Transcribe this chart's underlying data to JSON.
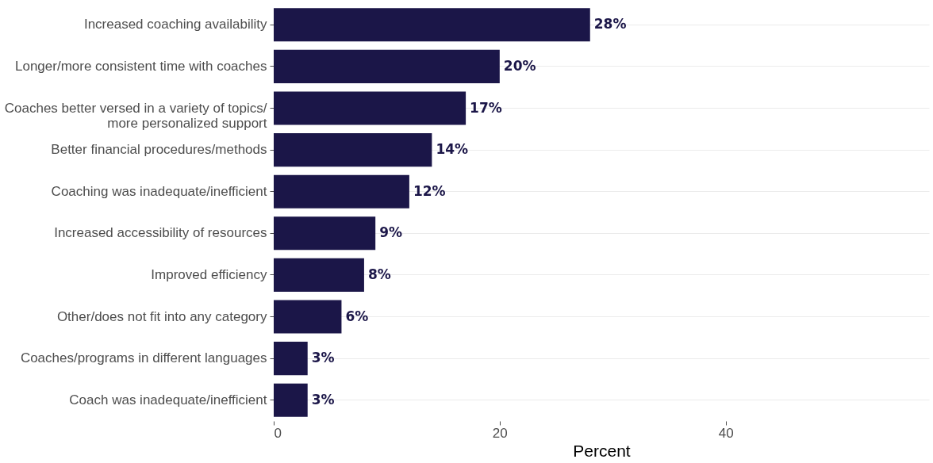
{
  "chart_data": {
    "type": "bar",
    "orientation": "horizontal",
    "xlabel": "Percent",
    "categories": [
      "Increased coaching availability",
      "Longer/more consistent time with coaches",
      "Coaches better versed in a variety of topics/\nmore personalized support",
      "Better financial procedures/methods",
      "Coaching was inadequate/inefficient",
      "Increased accessibility of resources",
      "Improved efficiency",
      "Other/does not fit into any category",
      "Coaches/programs in different languages",
      "Coach was inadequate/inefficient"
    ],
    "values": [
      28,
      20,
      17,
      14,
      12,
      9,
      8,
      6,
      3,
      3
    ],
    "value_labels": [
      "28%",
      "20%",
      "17%",
      "14%",
      "12%",
      "9%",
      "8%",
      "6%",
      "3%",
      "3%"
    ],
    "color": "#1b1648",
    "xlim": [
      0,
      58
    ],
    "xticks": [
      0,
      20,
      40
    ],
    "grid": "y"
  }
}
